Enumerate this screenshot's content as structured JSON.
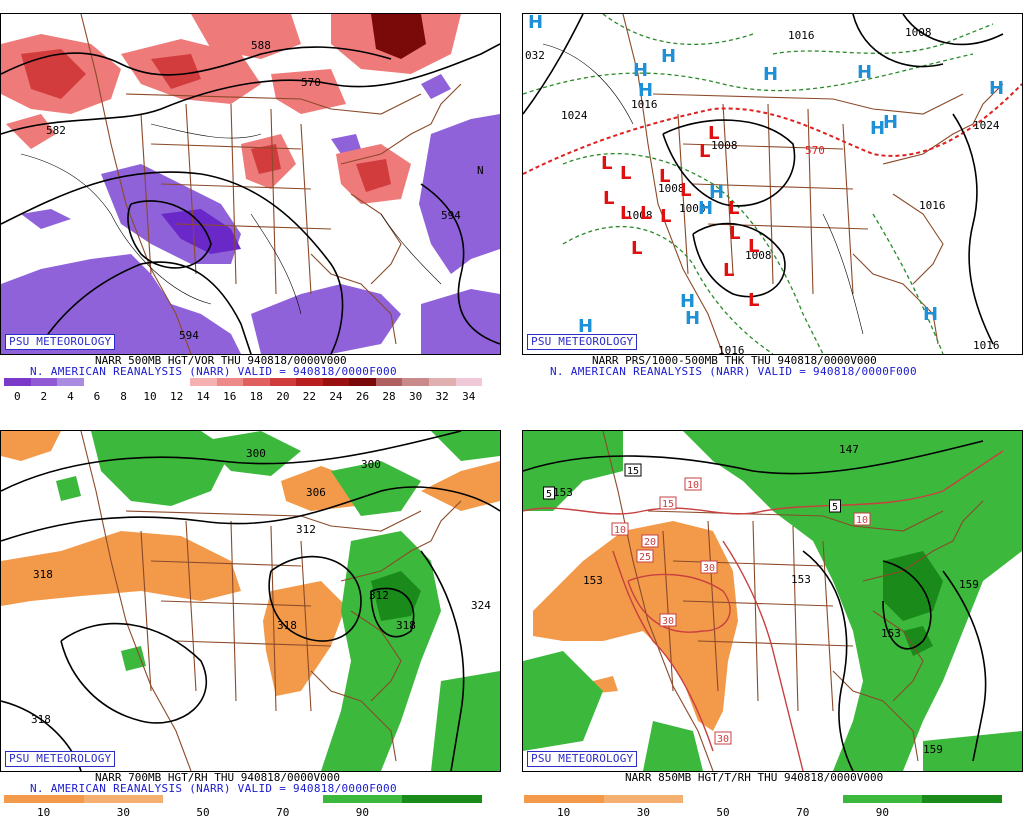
{
  "panels": {
    "tl": {
      "badge": "PSU METEOROLOGY",
      "caption1": "NARR 500MB HGT/VOR THU 940818/0000V000",
      "caption2": "N. AMERICAN REANALYSIS (NARR) VALID = 940818/0000F000",
      "contour_labels": [
        "582",
        "588",
        "570",
        "594",
        "594",
        "N"
      ],
      "colorbar": {
        "colors": [
          "#7b39c9",
          "#8f5ad4",
          "#a98ce0",
          "#ffffff",
          "#ffffff",
          "#ffffff",
          "#ffffff",
          "#f5b0b0",
          "#ec8a8a",
          "#e06060",
          "#d03c3c",
          "#b82020",
          "#9a1010",
          "#7a0a0a",
          "#b06060",
          "#c88a8a",
          "#e0b0b0",
          "#f0c8d8"
        ],
        "ticks": [
          "0",
          "2",
          "4",
          "6",
          "8",
          "10",
          "12",
          "14",
          "16",
          "18",
          "20",
          "22",
          "24",
          "26",
          "28",
          "30",
          "32",
          "34"
        ]
      }
    },
    "tr": {
      "badge": "PSU METEOROLOGY",
      "caption1": "NARR PRS/1000-500MB THK THU 940818/0000V000",
      "caption2": "N. AMERICAN REANALYSIS (NARR) VALID = 940818/0000F000",
      "contour_labels": [
        "032",
        "1024",
        "1016",
        "1016",
        "1008",
        "1008",
        "1008",
        "1008",
        "1008",
        "570",
        "1016",
        "1024",
        "1016",
        "1008",
        "1016"
      ],
      "high_symbol": "H",
      "low_symbol": "L"
    },
    "bl": {
      "badge": "PSU METEOROLOGY",
      "caption1": "NARR 700MB HGT/RH THU 940818/0000V000",
      "caption2": "N. AMERICAN REANALYSIS (NARR) VALID = 940818/0000F000",
      "contour_labels": [
        "300",
        "300",
        "306",
        "312",
        "318",
        "318",
        "312",
        "318",
        "324",
        "318"
      ],
      "colorbar": {
        "colors": [
          "#f29a4a",
          "#f4b070",
          "#ffffff",
          "#ffffff",
          "#3cb83c",
          "#1a8a1a"
        ],
        "ticks": [
          "10",
          "30",
          "50",
          "70",
          "90"
        ]
      }
    },
    "br": {
      "badge": "PSU METEOROLOGY",
      "caption1": "NARR 850MB HGT/T/RH THU 940818/0000V000",
      "contour_labels": [
        "147",
        "153",
        "153",
        "153",
        "159",
        "153",
        "159"
      ],
      "temp_labels": [
        "5",
        "15",
        "15",
        "10",
        "10",
        "20",
        "25",
        "30",
        "30",
        "30",
        "5",
        "10"
      ],
      "colorbar": {
        "colors": [
          "#f29a4a",
          "#f4b070",
          "#ffffff",
          "#ffffff",
          "#3cb83c",
          "#1a8a1a"
        ],
        "ticks": [
          "10",
          "30",
          "50",
          "70",
          "90"
        ]
      }
    }
  },
  "colors": {
    "caption_blue": "#1b1bd0",
    "border_brown": "#8b4a2a",
    "high_blue": "#1e90d8",
    "low_red": "#e01010",
    "rh_green": "#3cb83c",
    "rh_orange": "#f29a4a"
  }
}
